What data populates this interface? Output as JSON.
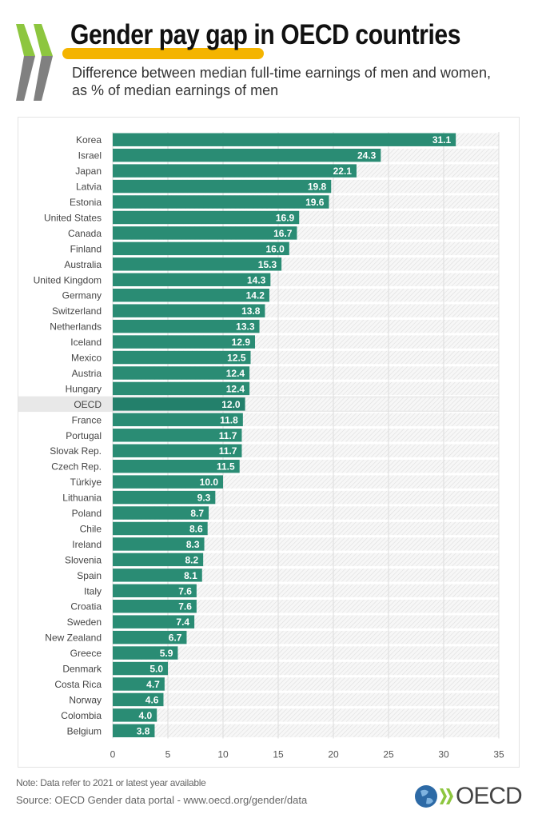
{
  "header": {
    "title": "Gender pay gap in OECD countries",
    "subtitle_line1": "Difference between median full-time earnings of men and women,",
    "subtitle_line2": "as % of median earnings of men"
  },
  "footer": {
    "note": "Note:  Data refer to 2021 or latest year available",
    "source": "Source: OECD Gender data portal - www.oecd.org/gender/data",
    "logo_text": "OECD"
  },
  "colors": {
    "bar": "#2a8c74",
    "highlight_row": "#e8e8e8",
    "title_highlight": "#f4b400",
    "chevron_green": "#8dc63f",
    "chevron_gray": "#808080"
  },
  "chart_data": {
    "type": "bar",
    "orientation": "horizontal",
    "title": "Gender pay gap in OECD countries",
    "subtitle": "Difference between median full-time earnings of men and women, as % of median earnings of men",
    "xlabel": "",
    "ylabel": "",
    "xlim": [
      0,
      35
    ],
    "xticks": [
      0,
      5,
      10,
      15,
      20,
      25,
      30,
      35
    ],
    "grid": true,
    "highlight": "OECD",
    "categories": [
      "Korea",
      "Israel",
      "Japan",
      "Latvia",
      "Estonia",
      "United States",
      "Canada",
      "Finland",
      "Australia",
      "United Kingdom",
      "Germany",
      "Switzerland",
      "Netherlands",
      "Iceland",
      "Mexico",
      "Austria",
      "Hungary",
      "OECD",
      "France",
      "Portugal",
      "Slovak Rep.",
      "Czech Rep.",
      "Türkiye",
      "Lithuania",
      "Poland",
      "Chile",
      "Ireland",
      "Slovenia",
      "Spain",
      "Italy",
      "Croatia",
      "Sweden",
      "New Zealand",
      "Greece",
      "Denmark",
      "Costa Rica",
      "Norway",
      "Colombia",
      "Belgium"
    ],
    "values": [
      31.1,
      24.3,
      22.1,
      19.8,
      19.6,
      16.9,
      16.7,
      16.0,
      15.3,
      14.3,
      14.2,
      13.8,
      13.3,
      12.9,
      12.5,
      12.4,
      12.4,
      12.0,
      11.8,
      11.7,
      11.7,
      11.5,
      10.0,
      9.3,
      8.7,
      8.6,
      8.3,
      8.2,
      8.1,
      7.6,
      7.6,
      7.4,
      6.7,
      5.9,
      5.0,
      4.7,
      4.6,
      4.0,
      3.8
    ],
    "value_labels": [
      "31.1",
      "24.3",
      "22.1",
      "19.8",
      "19.6",
      "16.9",
      "16.7",
      "16.0",
      "15.3",
      "14.3",
      "14.2",
      "13.8",
      "13.3",
      "12.9",
      "12.5",
      "12.4",
      "12.4",
      "12.0",
      "11.8",
      "11.7",
      "11.7",
      "11.5",
      "10.0",
      "9.3",
      "8.7",
      "8.6",
      "8.3",
      "8.2",
      "8.1",
      "7.6",
      "7.6",
      "7.4",
      "6.7",
      "5.9",
      "5.0",
      "4.7",
      "4.6",
      "4.0",
      "3.8"
    ]
  }
}
